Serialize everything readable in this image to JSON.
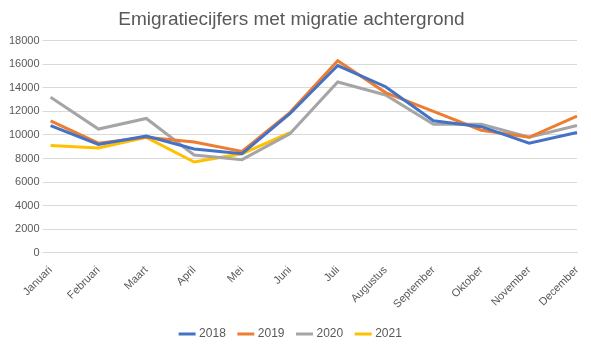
{
  "chart_data": {
    "type": "line",
    "title": "Emigratiecijfers met migratie achtergrond",
    "categories": [
      "Januari",
      "Februari",
      "Maart",
      "April",
      "Mei",
      "Juni",
      "Juli",
      "Augustus",
      "September",
      "Oktober",
      "November",
      "December"
    ],
    "series": [
      {
        "name": "2018",
        "color": "#4472c4",
        "values": [
          10800,
          9200,
          9900,
          8800,
          8400,
          11800,
          15900,
          14100,
          11200,
          10700,
          9300,
          10200
        ]
      },
      {
        "name": "2019",
        "color": "#ed7d31",
        "values": [
          11200,
          9300,
          9800,
          9400,
          8600,
          11900,
          16300,
          13600,
          12000,
          10400,
          9800,
          11600
        ]
      },
      {
        "name": "2020",
        "color": "#a5a5a5",
        "values": [
          13200,
          10500,
          11400,
          8300,
          7900,
          10100,
          14500,
          13400,
          10900,
          10900,
          9800,
          10800
        ]
      },
      {
        "name": "2021",
        "color": "#ffc000",
        "values": [
          9100,
          8900,
          9800,
          7700,
          8400,
          10200,
          null,
          null,
          null,
          null,
          null,
          null
        ]
      }
    ],
    "ylim": [
      0,
      18000
    ],
    "yticks": [
      0,
      2000,
      4000,
      6000,
      8000,
      10000,
      12000,
      14000,
      16000,
      18000
    ],
    "grid": true,
    "legend": "bottom",
    "marker": "none",
    "line_style": "solid"
  }
}
